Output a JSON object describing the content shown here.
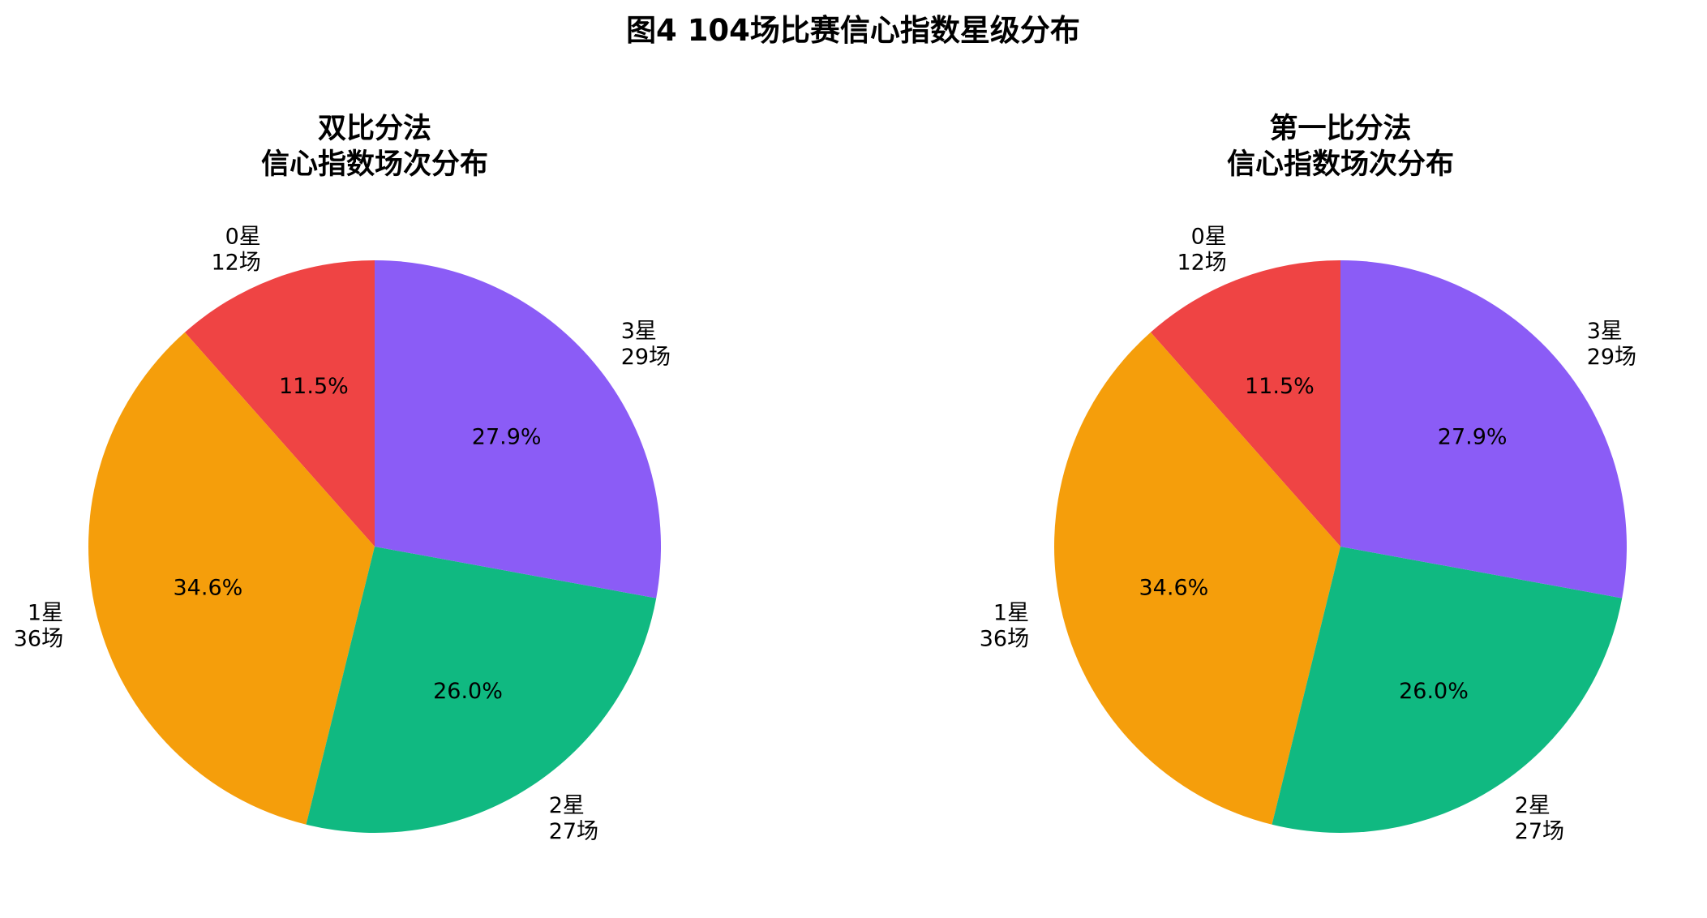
{
  "figure": {
    "title": "图4  104场比赛信心指数星级分布"
  },
  "chart_data": [
    {
      "type": "pie",
      "title_lines": [
        "双比分法",
        "信心指数场次分布"
      ],
      "categories": [
        "0星",
        "1星",
        "2星",
        "3星"
      ],
      "count_labels": [
        "12场",
        "36场",
        "27场",
        "29场"
      ],
      "values": [
        12,
        36,
        27,
        29
      ],
      "percent_labels": [
        "11.5%",
        "34.6%",
        "26.0%",
        "27.9%"
      ],
      "colors": [
        "#EF4444",
        "#F59E0B",
        "#10B981",
        "#8B5CF6"
      ],
      "start_angle_deg": 90,
      "direction": "counterclockwise"
    },
    {
      "type": "pie",
      "title_lines": [
        "第一比分法",
        "信心指数场次分布"
      ],
      "categories": [
        "0星",
        "1星",
        "2星",
        "3星"
      ],
      "count_labels": [
        "12场",
        "36场",
        "27场",
        "29场"
      ],
      "values": [
        12,
        36,
        27,
        29
      ],
      "percent_labels": [
        "11.5%",
        "34.6%",
        "26.0%",
        "27.9%"
      ],
      "colors": [
        "#EF4444",
        "#F59E0B",
        "#10B981",
        "#8B5CF6"
      ],
      "start_angle_deg": 90,
      "direction": "counterclockwise"
    }
  ]
}
